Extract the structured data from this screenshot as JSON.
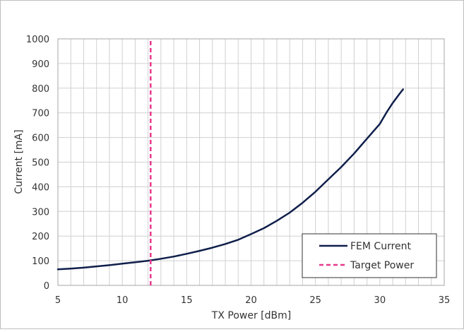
{
  "chart_data": {
    "type": "line",
    "xlabel": "TX Power [dBm]",
    "ylabel": "Current [mA]",
    "xlim": [
      5,
      35
    ],
    "ylim": [
      0,
      1000
    ],
    "x_ticks": [
      5,
      10,
      15,
      20,
      25,
      30,
      35
    ],
    "y_ticks": [
      0,
      100,
      200,
      300,
      400,
      500,
      600,
      700,
      800,
      900,
      1000
    ],
    "x_minor_step": 1,
    "grid": true,
    "legend_position": "bottom-right",
    "series": [
      {
        "name": "FEM Current",
        "color": "#0f1f4b",
        "style": "solid",
        "x": [
          5,
          6,
          7,
          8,
          9,
          10,
          11,
          12,
          13,
          14,
          15,
          16,
          17,
          18,
          19,
          20,
          21,
          22,
          23,
          24,
          25,
          26,
          27,
          28,
          29,
          30,
          30.5,
          31,
          31.5,
          31.8
        ],
        "y": [
          65,
          68,
          72,
          77,
          82,
          88,
          94,
          100,
          108,
          117,
          128,
          140,
          153,
          168,
          185,
          208,
          232,
          262,
          295,
          335,
          380,
          430,
          480,
          535,
          595,
          655,
          700,
          740,
          775,
          795
        ]
      },
      {
        "name": "Target Power",
        "color": "#e8388e",
        "style": "dashed",
        "x": [
          12.2,
          12.2
        ],
        "y": [
          0,
          1000
        ]
      }
    ]
  }
}
